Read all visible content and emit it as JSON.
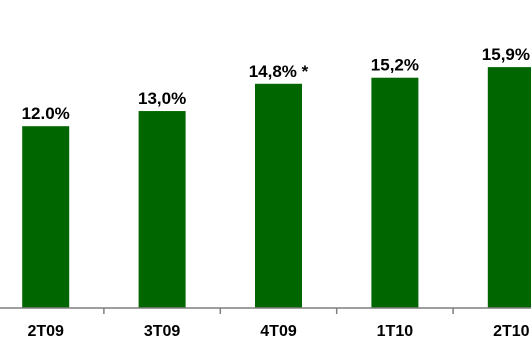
{
  "chart_data": {
    "type": "bar",
    "categories": [
      "2T09",
      "3T09",
      "4T09",
      "1T10",
      "2T10"
    ],
    "values": [
      12.0,
      13.0,
      14.8,
      15.2,
      15.9
    ],
    "data_labels": [
      "12.0%",
      "13,0%",
      "14,8% *",
      "15,2%",
      "15,9%"
    ],
    "title": "",
    "xlabel": "",
    "ylabel": "",
    "ylim": [
      0,
      17.5
    ],
    "grid": false,
    "legend": "none",
    "bar_color": "#006600",
    "axis_color": "#7f7f7f"
  }
}
